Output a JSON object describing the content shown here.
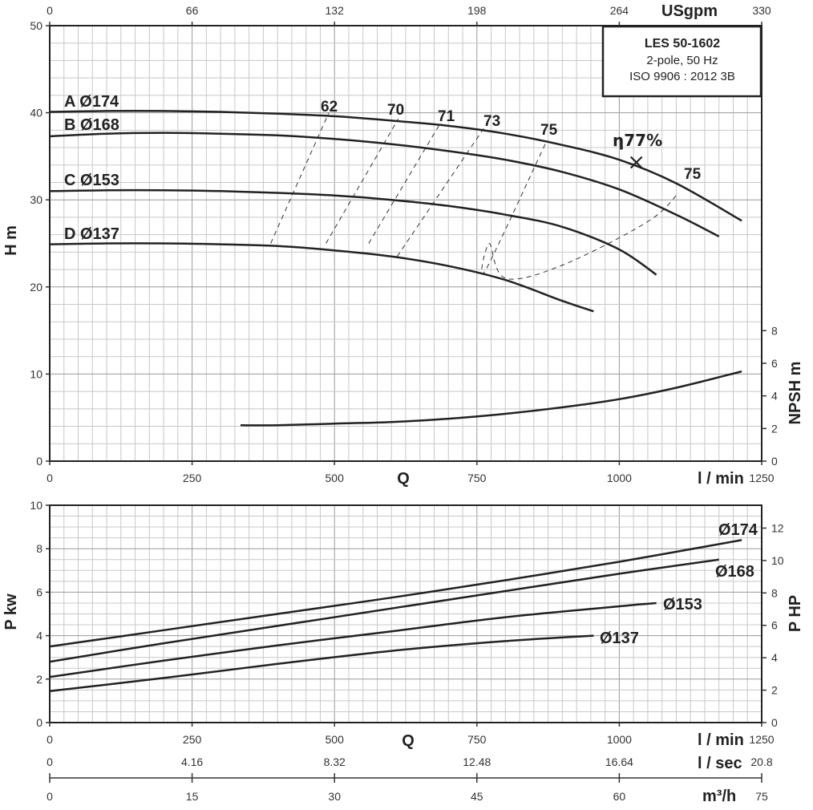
{
  "title_box": {
    "model": "LES 50-1602",
    "line1": "2-pole, 50 Hz",
    "line2": "ISO 9906 : 2012 3B"
  },
  "chart_data": [
    {
      "type": "line",
      "panel": "head",
      "xlabel": "Q",
      "xunit": "l / min",
      "x_ticks": [
        0,
        250,
        500,
        750,
        1000,
        1250
      ],
      "xlim": [
        0,
        1250
      ],
      "x2_unit": "USgpm",
      "x2_ticks": [
        0,
        66,
        132,
        198,
        264,
        330
      ],
      "ylabel": "H m",
      "ylim": [
        0,
        50
      ],
      "y_ticks": [
        0,
        10,
        20,
        30,
        40,
        50
      ],
      "y2label": "NPSH m",
      "y2_ticks": [
        0,
        2,
        4,
        6,
        8
      ],
      "y2lim": [
        0,
        26.7
      ],
      "grid": true,
      "series": [
        {
          "name": "A Ø174",
          "x": [
            0,
            100,
            200,
            300,
            400,
            500,
            600,
            700,
            800,
            900,
            1000,
            1100,
            1215
          ],
          "y": [
            40.1,
            40.2,
            40.2,
            40.1,
            39.9,
            39.6,
            39.1,
            38.5,
            37.6,
            36.3,
            34.6,
            31.9,
            27.6
          ]
        },
        {
          "name": "B Ø168",
          "x": [
            0,
            100,
            200,
            300,
            400,
            500,
            600,
            700,
            800,
            900,
            1000,
            1100,
            1175
          ],
          "y": [
            37.3,
            37.6,
            37.7,
            37.6,
            37.4,
            37.0,
            36.4,
            35.6,
            34.6,
            33.2,
            31.2,
            28.3,
            25.8
          ]
        },
        {
          "name": "C Ø153",
          "x": [
            0,
            100,
            200,
            300,
            400,
            500,
            600,
            700,
            800,
            900,
            1000,
            1065
          ],
          "y": [
            31.0,
            31.1,
            31.1,
            31.0,
            30.8,
            30.5,
            30.0,
            29.3,
            28.3,
            26.9,
            24.3,
            21.4
          ]
        },
        {
          "name": "D Ø137",
          "x": [
            0,
            100,
            200,
            300,
            400,
            500,
            600,
            700,
            800,
            900,
            955
          ],
          "y": [
            24.9,
            25.0,
            25.0,
            24.9,
            24.7,
            24.2,
            23.5,
            22.4,
            20.8,
            18.4,
            17.2
          ]
        }
      ],
      "efficiency_lines": [
        {
          "label": "62",
          "x": [
            388,
            490
          ],
          "y": [
            25.0,
            40.0
          ]
        },
        {
          "label": "70",
          "x": [
            485,
            612
          ],
          "y": [
            25.0,
            39.3
          ]
        },
        {
          "label": "71",
          "x": [
            560,
            685
          ],
          "y": [
            25.0,
            38.7
          ]
        },
        {
          "label": "73",
          "x": [
            610,
            762
          ],
          "y": [
            23.5,
            38.2
          ]
        },
        {
          "label": "75",
          "x": [
            765,
            870,
            772,
            800,
            900,
            1050,
            1104
          ],
          "y": [
            21.9,
            36.4,
            25.0,
            21.0,
            22.5,
            27.5,
            30.8
          ]
        }
      ],
      "eff_labels": [
        "62",
        "70",
        "71",
        "73",
        "75",
        "75"
      ],
      "bep_label": "η77%",
      "bep_point": {
        "x": 1030,
        "y": 34.3
      },
      "npsh": {
        "x": [
          335,
          400,
          500,
          600,
          700,
          800,
          900,
          1000,
          1100,
          1215
        ],
        "y": [
          2.2,
          2.2,
          2.3,
          2.4,
          2.6,
          2.9,
          3.3,
          3.8,
          4.5,
          5.5
        ]
      }
    },
    {
      "type": "line",
      "panel": "power",
      "xlabel": "Q",
      "xunit": "l / min",
      "x_ticks": [
        0,
        250,
        500,
        750,
        1000,
        1250
      ],
      "xlim": [
        0,
        1250
      ],
      "ylabel": "P kw",
      "ylim": [
        0,
        10
      ],
      "y_ticks": [
        0,
        2,
        4,
        6,
        8,
        10
      ],
      "y2label": "P HP",
      "y2_ticks": [
        0,
        2,
        4,
        6,
        8,
        10,
        12
      ],
      "grid": true,
      "series": [
        {
          "name": "Ø174",
          "x": [
            0,
            200,
            400,
            600,
            800,
            1000,
            1215
          ],
          "y": [
            3.5,
            4.25,
            5.0,
            5.75,
            6.55,
            7.4,
            8.4
          ]
        },
        {
          "name": "Ø168",
          "x": [
            0,
            200,
            400,
            600,
            800,
            1000,
            1175
          ],
          "y": [
            2.8,
            3.65,
            4.45,
            5.25,
            6.05,
            6.85,
            7.5
          ]
        },
        {
          "name": "Ø153",
          "x": [
            0,
            200,
            400,
            600,
            800,
            1000,
            1065
          ],
          "y": [
            2.1,
            2.85,
            3.55,
            4.2,
            4.85,
            5.35,
            5.5
          ]
        },
        {
          "name": "Ø137",
          "x": [
            0,
            200,
            400,
            600,
            800,
            955
          ],
          "y": [
            1.45,
            2.05,
            2.7,
            3.3,
            3.75,
            4.0
          ]
        }
      ]
    }
  ],
  "lower_axes": {
    "q_label": "Q",
    "lmin_unit": "l / min",
    "lmin_ticks": [
      0,
      250,
      500,
      750,
      1000,
      1250
    ],
    "lsec_unit": "l / sec",
    "lsec_ticks": [
      "0",
      "4.16",
      "8.32",
      "12.48",
      "16.64",
      "20.8"
    ],
    "m3h_unit": "m³/h",
    "m3h_ticks": [
      0,
      15,
      30,
      45,
      60,
      75
    ]
  }
}
